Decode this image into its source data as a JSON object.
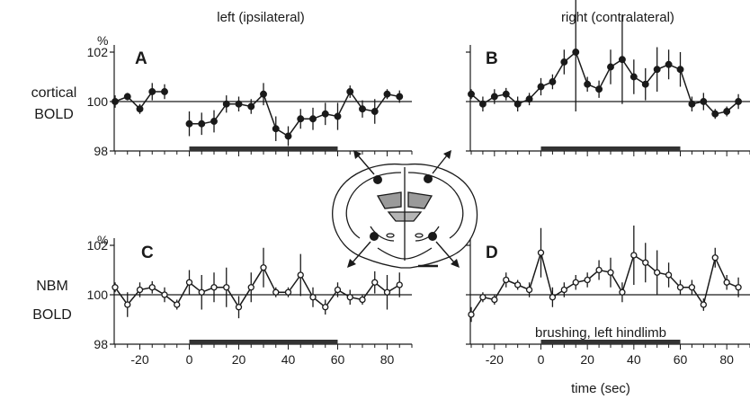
{
  "labels": {
    "col_left": "left (ipsilateral)",
    "col_right": "right (contralateral)",
    "row1_line1": "cortical",
    "row1_line2": "BOLD",
    "row2_line1": "NBM",
    "row2_line2": "BOLD",
    "xlabel": "time (sec)",
    "stim_label": "brushing, left hindlimb",
    "y_unit": "%"
  },
  "colors": {
    "ink": "#1a1a1a",
    "stim_bar": "#333333"
  },
  "chart_data": [
    {
      "panel": "A",
      "type": "line",
      "marker": "filled",
      "x": [
        -30,
        -25,
        -20,
        -15,
        -10,
        -5,
        0,
        5,
        10,
        15,
        20,
        25,
        30,
        35,
        40,
        45,
        50,
        55,
        60,
        65,
        70,
        75,
        80,
        85
      ],
      "y": [
        100.0,
        100.2,
        99.7,
        100.4,
        100.4,
        null,
        99.1,
        99.1,
        99.2,
        99.9,
        99.9,
        99.8,
        100.3,
        98.9,
        98.6,
        99.3,
        99.3,
        99.5,
        99.4,
        100.4,
        99.7,
        99.6,
        100.3,
        100.2
      ],
      "err": [
        0.25,
        0.15,
        0.2,
        0.35,
        0.3,
        null,
        0.5,
        0.45,
        0.45,
        0.35,
        0.3,
        0.3,
        0.45,
        0.5,
        0.4,
        0.4,
        0.45,
        0.45,
        0.55,
        0.25,
        0.35,
        0.5,
        0.2,
        0.25
      ],
      "xlim": [
        -30,
        90
      ],
      "ylim": [
        98,
        102
      ],
      "yticks": [
        98,
        100,
        102
      ],
      "stimulus": [
        0,
        60
      ]
    },
    {
      "panel": "B",
      "type": "line",
      "marker": "filled",
      "x": [
        -30,
        -25,
        -20,
        -15,
        -10,
        -5,
        0,
        5,
        10,
        15,
        20,
        25,
        30,
        35,
        40,
        45,
        50,
        55,
        60,
        65,
        70,
        75,
        80,
        85
      ],
      "y": [
        100.3,
        99.9,
        100.2,
        100.3,
        99.9,
        100.1,
        100.6,
        100.8,
        101.6,
        102.0,
        100.7,
        100.5,
        101.4,
        101.7,
        101.0,
        100.7,
        101.3,
        101.5,
        101.3,
        99.9,
        100.0,
        99.5,
        99.6,
        100.0
      ],
      "err": [
        0.2,
        0.3,
        0.3,
        0.25,
        0.3,
        0.25,
        0.35,
        0.3,
        0.5,
        2.4,
        0.3,
        0.35,
        0.7,
        1.8,
        0.7,
        0.65,
        0.9,
        0.6,
        0.7,
        0.3,
        0.35,
        0.2,
        0.2,
        0.3
      ],
      "xlim": [
        -30,
        90
      ],
      "ylim": [
        98,
        102
      ],
      "yticks": [
        98,
        100,
        102
      ],
      "stimulus": [
        0,
        60
      ]
    },
    {
      "panel": "C",
      "type": "line",
      "marker": "open",
      "x": [
        -30,
        -25,
        -20,
        -15,
        -10,
        -5,
        0,
        5,
        10,
        15,
        20,
        25,
        30,
        35,
        40,
        45,
        50,
        55,
        60,
        65,
        70,
        75,
        80,
        85
      ],
      "y": [
        100.3,
        99.6,
        100.2,
        100.3,
        100.0,
        99.6,
        100.5,
        100.1,
        100.3,
        100.3,
        99.5,
        100.3,
        101.1,
        100.1,
        100.1,
        100.8,
        99.9,
        99.5,
        100.2,
        99.9,
        99.8,
        100.5,
        100.1,
        100.4
      ],
      "err": [
        0.2,
        0.5,
        0.3,
        0.25,
        0.3,
        0.2,
        0.5,
        0.7,
        0.6,
        0.8,
        0.45,
        0.6,
        0.8,
        0.2,
        0.2,
        0.85,
        0.4,
        0.3,
        0.3,
        0.3,
        0.2,
        0.45,
        0.7,
        0.5
      ],
      "xlim": [
        -30,
        90
      ],
      "ylim": [
        98,
        102
      ],
      "yticks": [
        98,
        100,
        102
      ],
      "stimulus": [
        0,
        60
      ]
    },
    {
      "panel": "D",
      "type": "line",
      "marker": "open",
      "x": [
        -30,
        -25,
        -20,
        -15,
        -10,
        -5,
        0,
        5,
        10,
        15,
        20,
        25,
        30,
        35,
        40,
        45,
        50,
        55,
        60,
        65,
        70,
        75,
        80,
        85
      ],
      "y": [
        99.2,
        99.9,
        99.8,
        100.6,
        100.4,
        100.2,
        101.7,
        99.9,
        100.2,
        100.5,
        100.6,
        101.0,
        100.9,
        100.1,
        101.6,
        101.3,
        100.9,
        100.8,
        100.3,
        100.3,
        99.6,
        101.5,
        100.5,
        100.3
      ],
      "err": [
        0.3,
        0.2,
        0.2,
        0.3,
        0.2,
        0.3,
        1.0,
        0.4,
        0.3,
        0.3,
        0.3,
        0.4,
        0.6,
        0.4,
        1.2,
        0.8,
        0.9,
        0.5,
        0.3,
        0.3,
        0.25,
        0.4,
        0.3,
        0.4
      ],
      "xlim": [
        -30,
        90
      ],
      "ylim": [
        98,
        102
      ],
      "yticks": [
        98,
        100,
        102
      ],
      "xticks": [
        -20,
        0,
        20,
        40,
        60,
        80
      ],
      "stimulus": [
        0,
        60
      ]
    }
  ]
}
